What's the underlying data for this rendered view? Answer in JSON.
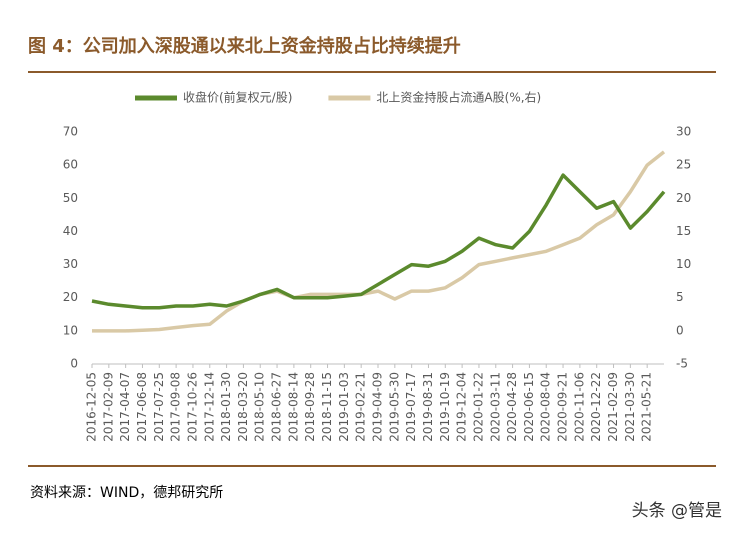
{
  "header": {
    "title": "图 4：公司加入深股通以来北上资金持股占比持续提升"
  },
  "chart_data": {
    "type": "line",
    "categories": [
      "2016-12-05",
      "2017-02-09",
      "2017-04-07",
      "2017-06-08",
      "2017-07-25",
      "2017-09-08",
      "2017-10-26",
      "2017-12-14",
      "2018-01-30",
      "2018-03-20",
      "2018-05-10",
      "2018-06-27",
      "2018-08-14",
      "2018-09-28",
      "2018-11-15",
      "2019-01-03",
      "2019-02-21",
      "2019-04-09",
      "2019-05-30",
      "2019-07-17",
      "2019-08-31",
      "2019-10-19",
      "2019-12-04",
      "2020-01-22",
      "2020-03-11",
      "2020-04-28",
      "2020-06-15",
      "2020-08-04",
      "2020-09-21",
      "2020-11-06",
      "2020-12-22",
      "2021-02-09",
      "2021-03-30",
      "2021-05-21",
      null
    ],
    "series": [
      {
        "name": "收盘价(前复权元/股)",
        "color": "#5b8a2d",
        "axis": "y",
        "values": [
          19,
          18,
          17.5,
          17,
          17,
          17.5,
          17.5,
          18,
          17.5,
          19,
          21,
          22.5,
          20,
          20,
          20,
          20.5,
          21,
          24,
          27,
          30,
          29.5,
          31,
          34,
          38,
          36,
          35,
          40,
          48,
          57,
          52,
          47,
          49,
          41,
          46,
          52
        ]
      },
      {
        "name": "北上资金持股占流通A股(%,右)",
        "color": "#d9c9a6",
        "axis": "y2",
        "values": [
          0,
          0,
          0,
          0.1,
          0.2,
          0.5,
          0.8,
          1,
          3,
          4.5,
          5.5,
          6,
          5,
          5.5,
          5.5,
          5.5,
          5.5,
          6,
          4.8,
          6,
          6,
          6.5,
          8,
          10,
          10.5,
          11,
          11.5,
          12,
          13,
          14,
          16,
          17.5,
          21,
          25,
          27
        ]
      }
    ],
    "ylim": [
      0,
      70
    ],
    "yticks": [
      0,
      10,
      20,
      30,
      40,
      50,
      60,
      70
    ],
    "y2lim": [
      -5,
      30
    ],
    "y2ticks": [
      -5,
      0,
      5,
      10,
      15,
      20,
      25,
      30
    ],
    "legend": "top"
  },
  "footer": {
    "source": "资料来源：WIND，德邦研究所",
    "watermark": "头条 @管是"
  }
}
